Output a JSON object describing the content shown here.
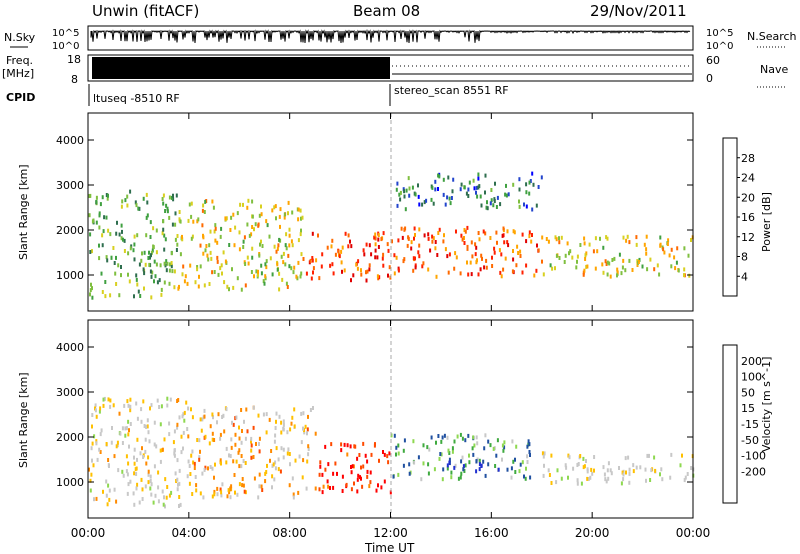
{
  "header": {
    "station": "Unwin (fitACF)",
    "beam": "Beam 08",
    "date": "29/Nov/2011"
  },
  "status": {
    "nsky_label": "N.Sky",
    "nsky_ticks": [
      "10^5",
      "10^0"
    ],
    "nsearch_label": "N.Search",
    "nsearch_ticks": [
      "10^5",
      "10^0"
    ],
    "freq_label": "Freq.",
    "freq_unit": "[MHz]",
    "freq_ticks": [
      "18",
      "8"
    ],
    "nave_label": "Nave",
    "nave_ticks": [
      "60",
      "0"
    ],
    "cpid_label": "CPID",
    "cpid_segments": [
      {
        "text": "ltuseq -8510 RF",
        "start_hour": 0,
        "end_hour": 12
      },
      {
        "text": "stereo_scan 8551 RF",
        "start_hour": 12,
        "end_hour": 24
      }
    ]
  },
  "colors": {
    "power": [
      "#0000ff",
      "#2244cc",
      "#2e6e4e",
      "#3fa040",
      "#7fbf3f",
      "#d8d020",
      "#ffa500",
      "#ff6a00",
      "#ff2000",
      "#e00000"
    ],
    "velocity": [
      "#ff0000",
      "#ff4a00",
      "#ff8a00",
      "#ffc000",
      "#c8c8c8",
      "#c8c8c8",
      "#8ed850",
      "#3faa3f",
      "#2050a0",
      "#2030d0"
    ]
  },
  "chart_data": [
    {
      "type": "heatmap",
      "title": "",
      "xlabel": "Time UT",
      "ylabel": "Slant Range [km]",
      "x_ticks": [
        "00:00",
        "04:00",
        "08:00",
        "12:00",
        "16:00",
        "20:00",
        "00:00"
      ],
      "x_range_hours": [
        0,
        24
      ],
      "ylim": [
        200,
        4600
      ],
      "y_ticks": [
        1000,
        2000,
        3000,
        4000
      ],
      "colorbar": {
        "label": "Power [dB]",
        "range": [
          0,
          32
        ],
        "ticks": [
          4,
          8,
          12,
          16,
          20,
          24,
          28
        ]
      },
      "scatter_regions": [
        {
          "start_hour": 0,
          "end_hour": 3.5,
          "range_low": 500,
          "range_high": 2900,
          "level": 0.4
        },
        {
          "start_hour": 3.5,
          "end_hour": 8.5,
          "range_low": 700,
          "range_high": 2700,
          "level": 0.55
        },
        {
          "start_hour": 8.5,
          "end_hour": 12,
          "range_low": 900,
          "range_high": 2000,
          "level": 0.8
        },
        {
          "start_hour": 12,
          "end_hour": 18,
          "range_low": 1000,
          "range_high": 2100,
          "level": 0.78
        },
        {
          "start_hour": 12,
          "end_hour": 18,
          "range_low": 2500,
          "range_high": 3300,
          "level": 0.25
        },
        {
          "start_hour": 18,
          "end_hour": 24,
          "range_low": 1000,
          "range_high": 1900,
          "level": 0.55
        }
      ]
    },
    {
      "type": "heatmap",
      "title": "",
      "xlabel": "Time UT",
      "ylabel": "Slant Range [km]",
      "x_ticks": [
        "00:00",
        "04:00",
        "08:00",
        "12:00",
        "16:00",
        "20:00",
        "00:00"
      ],
      "x_range_hours": [
        0,
        24
      ],
      "ylim": [
        200,
        4600
      ],
      "y_ticks": [
        1000,
        2000,
        3000,
        4000
      ],
      "colorbar": {
        "label": "Velocity [m s^-1]",
        "tick_labels": [
          "200",
          "100",
          "50",
          "15",
          "-15",
          "-50",
          "-100",
          "-200"
        ]
      },
      "scatter_regions": [
        {
          "start_hour": 0,
          "end_hour": 4,
          "range_low": 500,
          "range_high": 2900,
          "level": 0.45
        },
        {
          "start_hour": 4,
          "end_hour": 9,
          "range_low": 700,
          "range_high": 2700,
          "level": 0.35
        },
        {
          "start_hour": 9,
          "end_hour": 12,
          "range_low": 800,
          "range_high": 1900,
          "level": 0.05
        },
        {
          "start_hour": 12,
          "end_hour": 17.5,
          "range_low": 1100,
          "range_high": 2100,
          "level": 0.72
        },
        {
          "start_hour": 14,
          "end_hour": 16.5,
          "range_low": 1200,
          "range_high": 1500,
          "level": 0.92
        },
        {
          "start_hour": 18,
          "end_hour": 24,
          "range_low": 1000,
          "range_high": 1700,
          "level": 0.48
        }
      ]
    }
  ]
}
